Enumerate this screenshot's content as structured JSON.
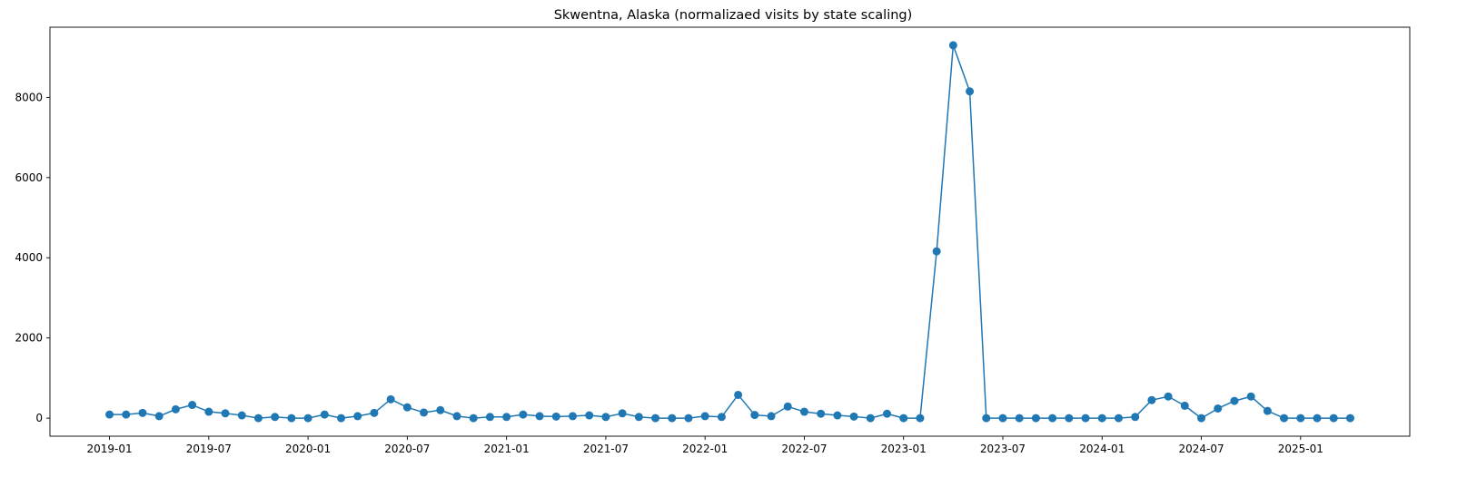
{
  "chart_data": {
    "type": "line",
    "title": "Skwentna, Alaska (normalizaed visits by state scaling)",
    "xlabel": "",
    "ylabel": "",
    "x_start": "2019-01",
    "x": [
      "2019-01",
      "2019-02",
      "2019-03",
      "2019-04",
      "2019-05",
      "2019-06",
      "2019-07",
      "2019-08",
      "2019-09",
      "2019-10",
      "2019-11",
      "2019-12",
      "2020-01",
      "2020-02",
      "2020-03",
      "2020-04",
      "2020-05",
      "2020-06",
      "2020-07",
      "2020-08",
      "2020-09",
      "2020-10",
      "2020-11",
      "2020-12",
      "2021-01",
      "2021-02",
      "2021-03",
      "2021-04",
      "2021-05",
      "2021-06",
      "2021-07",
      "2021-08",
      "2021-09",
      "2021-10",
      "2021-11",
      "2021-12",
      "2022-01",
      "2022-02",
      "2022-03",
      "2022-04",
      "2022-05",
      "2022-06",
      "2022-07",
      "2022-08",
      "2022-09",
      "2022-10",
      "2022-11",
      "2022-12",
      "2023-01",
      "2023-02",
      "2023-03",
      "2023-04",
      "2023-05",
      "2023-06",
      "2023-07",
      "2023-08",
      "2023-09",
      "2023-10",
      "2023-11",
      "2023-12",
      "2024-01",
      "2024-02",
      "2024-03",
      "2024-04",
      "2024-05",
      "2024-06",
      "2024-07",
      "2024-08",
      "2024-09",
      "2024-10",
      "2024-11",
      "2024-12",
      "2025-01",
      "2025-02",
      "2025-03",
      "2025-04"
    ],
    "series": [
      {
        "color": "#1f77b4",
        "values": [
          90,
          90,
          130,
          50,
          220,
          330,
          160,
          120,
          70,
          0,
          30,
          0,
          0,
          90,
          0,
          50,
          130,
          470,
          270,
          140,
          200,
          50,
          0,
          30,
          30,
          90,
          50,
          40,
          50,
          70,
          30,
          120,
          30,
          0,
          0,
          0,
          50,
          30,
          580,
          80,
          50,
          290,
          160,
          110,
          70,
          40,
          0,
          110,
          0,
          0,
          4160,
          9300,
          8150,
          0,
          0,
          0,
          0,
          0,
          0,
          0,
          0,
          0,
          30,
          450,
          540,
          310,
          0,
          240,
          430,
          540,
          180,
          0,
          0,
          0,
          0,
          0
        ]
      }
    ],
    "xticks": [
      "2019-01",
      "2019-07",
      "2020-01",
      "2020-07",
      "2021-01",
      "2021-07",
      "2022-01",
      "2022-07",
      "2023-01",
      "2023-07",
      "2024-01",
      "2024-07",
      "2025-01"
    ],
    "yticks": [
      0,
      2000,
      4000,
      6000,
      8000
    ],
    "ylim": [
      -450,
      9750
    ],
    "xlim_months": [
      -3.6,
      78.6
    ],
    "grid": false,
    "legend": "none"
  }
}
